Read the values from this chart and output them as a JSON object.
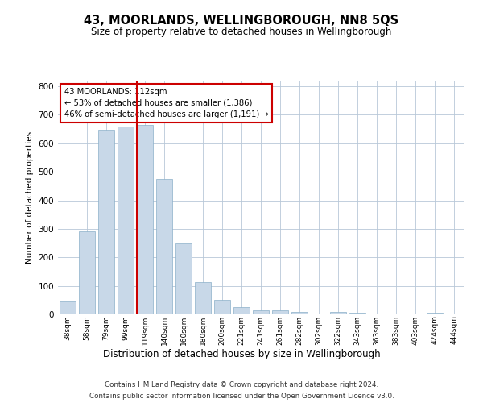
{
  "title": "43, MOORLANDS, WELLINGBOROUGH, NN8 5QS",
  "subtitle": "Size of property relative to detached houses in Wellingborough",
  "xlabel": "Distribution of detached houses by size in Wellingborough",
  "ylabel": "Number of detached properties",
  "footer_line1": "Contains HM Land Registry data © Crown copyright and database right 2024.",
  "footer_line2": "Contains public sector information licensed under the Open Government Licence v3.0.",
  "annotation_line1": "43 MOORLANDS: 112sqm",
  "annotation_line2": "← 53% of detached houses are smaller (1,386)",
  "annotation_line3": "46% of semi-detached houses are larger (1,191) →",
  "bar_color": "#c8d8e8",
  "bar_edge_color": "#8aafc8",
  "vline_color": "#cc0000",
  "annotation_box_edge_color": "#cc0000",
  "background_color": "#ffffff",
  "grid_color": "#b8c8d8",
  "categories": [
    "38sqm",
    "58sqm",
    "79sqm",
    "99sqm",
    "119sqm",
    "140sqm",
    "160sqm",
    "180sqm",
    "200sqm",
    "221sqm",
    "241sqm",
    "261sqm",
    "282sqm",
    "302sqm",
    "322sqm",
    "343sqm",
    "363sqm",
    "383sqm",
    "403sqm",
    "424sqm",
    "444sqm"
  ],
  "values": [
    45,
    292,
    648,
    660,
    665,
    475,
    248,
    113,
    50,
    25,
    14,
    13,
    8,
    2,
    8,
    7,
    3,
    1,
    0,
    7,
    0
  ],
  "vline_x": 3.57,
  "ylim": [
    0,
    820
  ],
  "yticks": [
    0,
    100,
    200,
    300,
    400,
    500,
    600,
    700,
    800
  ]
}
